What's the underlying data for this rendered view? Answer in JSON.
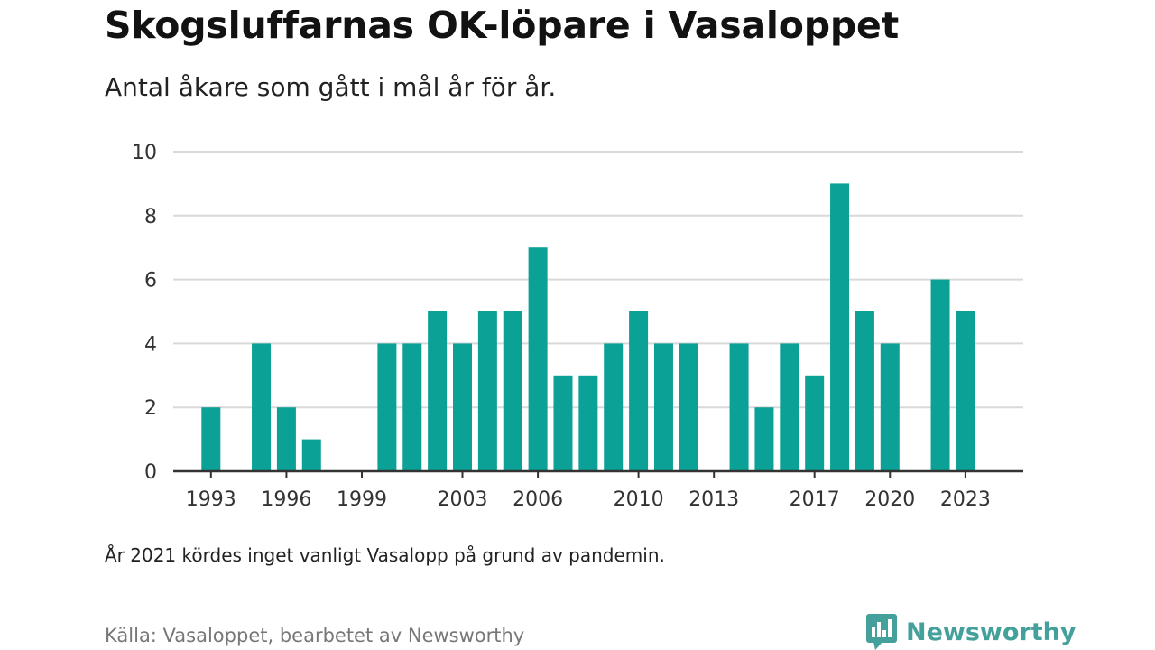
{
  "title": "Skogsluffarnas OK-löpare i Vasaloppet",
  "subtitle": "Antal åkare som gått i mål år för år.",
  "note": "År 2021 kördes inget vanligt Vasalopp på grund av pandemin.",
  "source": "Källa: Vasaloppet, bearbetet av Newsworthy",
  "brand": {
    "name": "Newsworthy",
    "icon": "newsworthy-logo-icon",
    "color": "#43a09a"
  },
  "colors": {
    "bar": "#0ca196",
    "grid": "#d9d9d9",
    "axis": "#333333"
  },
  "chart_data": {
    "type": "bar",
    "title": "",
    "xlabel": "",
    "ylabel": "",
    "x": [
      1993,
      1994,
      1995,
      1996,
      1997,
      1998,
      1999,
      2000,
      2001,
      2002,
      2003,
      2004,
      2005,
      2006,
      2007,
      2008,
      2009,
      2010,
      2011,
      2012,
      2013,
      2014,
      2015,
      2016,
      2017,
      2018,
      2019,
      2020,
      2021,
      2022,
      2023
    ],
    "values": [
      2,
      0,
      4,
      2,
      1,
      0,
      0,
      4,
      4,
      5,
      4,
      5,
      5,
      7,
      3,
      3,
      4,
      5,
      4,
      4,
      0,
      4,
      2,
      4,
      3,
      9,
      5,
      4,
      0,
      6,
      5
    ],
    "x_ticks": [
      1993,
      1996,
      1999,
      2003,
      2006,
      2010,
      2013,
      2017,
      2020,
      2023
    ],
    "y_ticks": [
      0,
      2,
      4,
      6,
      8,
      10
    ],
    "ylim": [
      0,
      10
    ],
    "xlim": [
      1991.5,
      2025.3
    ],
    "grid": true
  }
}
